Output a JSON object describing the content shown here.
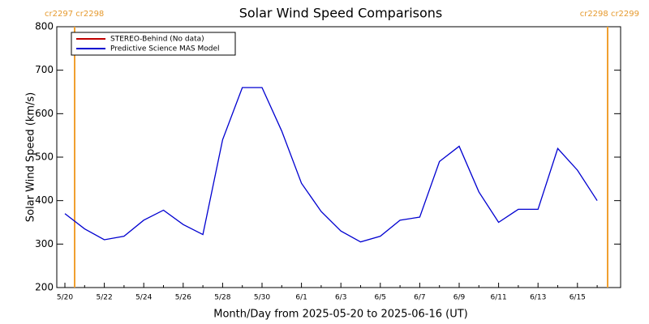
{
  "chart_data": {
    "type": "line",
    "title": "Solar Wind Speed Comparisons",
    "x_label": "Month/Day from 2025-05-20 to 2025-06-16 (UT)",
    "y_label": "Solar Wind Speed (km/s)",
    "annotations": [
      "cr2297 cr2298",
      "cr2298 cr2299"
    ],
    "x": [
      "5/20",
      null,
      "5/22",
      null,
      "5/24",
      null,
      "5/26",
      null,
      "5/28",
      null,
      "5/30",
      null,
      "6/1",
      null,
      "6/3",
      null,
      "6/5",
      null,
      "6/7",
      null,
      "6/9",
      null,
      "6/11",
      null,
      "6/13",
      null,
      "6/15",
      null
    ],
    "series": [
      {
        "name": "STEREO-Behind (No data)",
        "color": "#c00000",
        "values": [
          null,
          null,
          null,
          null,
          null,
          null,
          null,
          null,
          null,
          null,
          null,
          null,
          null,
          null,
          null,
          null,
          null,
          null,
          null,
          null,
          null,
          null,
          null,
          null,
          null,
          null,
          null,
          null
        ]
      },
      {
        "name": "Predictive Science MAS Model",
        "color": "#0000d0",
        "values": [
          370,
          335,
          310,
          318,
          355,
          378,
          345,
          322,
          540,
          660,
          660,
          560,
          440,
          375,
          330,
          305,
          318,
          355,
          362,
          490,
          525,
          420,
          350,
          380,
          380,
          520,
          470,
          400
        ]
      }
    ],
    "ylim": [
      200,
      800
    ],
    "yticks": [
      200,
      300,
      400,
      500,
      600,
      700,
      800
    ]
  }
}
